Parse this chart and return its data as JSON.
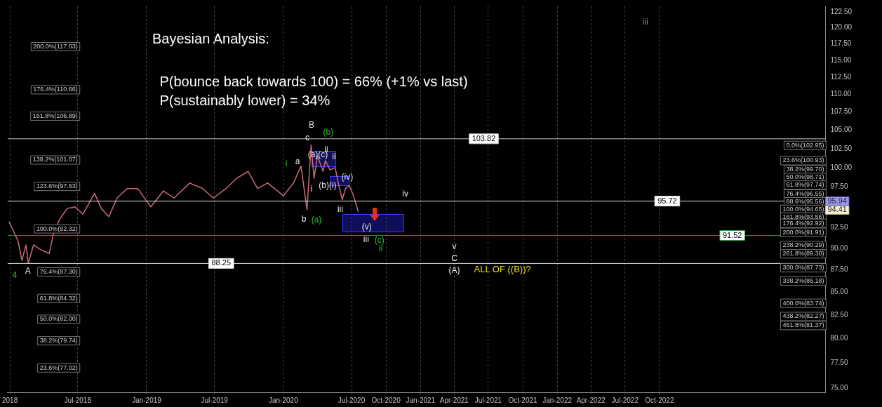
{
  "chart_data": {
    "type": "line",
    "title": "Bayesian Analysis:",
    "x": [
      "2017-12-29",
      "2018-01-09",
      "2018-01-23",
      "2018-02-02",
      "2018-02-13",
      "2018-02-19",
      "2018-03-05",
      "2018-03-26",
      "2018-04-16",
      "2018-04-27",
      "2018-05-14",
      "2018-06-03",
      "2018-06-24",
      "2018-07-15",
      "2018-08-15",
      "2018-09-02",
      "2018-09-22",
      "2018-10-14",
      "2018-11-10",
      "2018-12-08",
      "2019-01-12",
      "2019-02-15",
      "2019-03-15",
      "2019-04-26",
      "2019-05-31",
      "2019-06-28",
      "2019-08-01",
      "2019-08-29",
      "2019-09-29",
      "2019-10-24",
      "2019-11-20",
      "2020-01-01",
      "2020-01-28",
      "2020-02-17",
      "2020-03-04",
      "2020-03-15",
      "2020-03-23",
      "2020-04-01",
      "2020-04-16",
      "2020-04-22",
      "2020-05-05",
      "2020-05-18",
      "2020-05-24",
      "2020-06-06",
      "2020-06-15",
      "2020-06-25",
      "2020-07-06",
      "2020-07-19"
    ],
    "series": [
      {
        "color": "#c96b78",
        "values": [
          93.2,
          92.2,
          90.8,
          88.6,
          90.4,
          88.25,
          90.4,
          89.8,
          89.4,
          91.7,
          93.5,
          94.8,
          95.0,
          94.1,
          96.7,
          94.8,
          93.8,
          96.1,
          97.3,
          97.3,
          95.0,
          97.0,
          96.1,
          98.0,
          97.3,
          96.1,
          97.3,
          98.6,
          99.5,
          97.3,
          98.0,
          96.4,
          98.0,
          100.2,
          94.65,
          103.0,
          98.6,
          101.5,
          99.5,
          100.9,
          99.7,
          100.0,
          98.6,
          95.9,
          97.3,
          97.7,
          96.4,
          94.4
        ]
      }
    ],
    "log": true,
    "ylim": [
      74.6,
      123.4
    ],
    "yticks": [
      {
        "value": 75,
        "label": "75.00"
      },
      {
        "value": 77.5,
        "label": "77.50"
      },
      {
        "value": 80,
        "label": "80.00"
      },
      {
        "value": 82.5,
        "label": "82.50"
      },
      {
        "value": 85,
        "label": "85.00"
      },
      {
        "value": 87.5,
        "label": "87.50"
      },
      {
        "value": 90,
        "label": "90.00"
      },
      {
        "value": 92.5,
        "label": "92.50"
      },
      {
        "value": 97.5,
        "label": "97.50"
      },
      {
        "value": 100,
        "label": "100.00"
      },
      {
        "value": 102.5,
        "label": "102.50"
      },
      {
        "value": 105,
        "label": "105.00"
      },
      {
        "value": 107.5,
        "label": "107.50"
      },
      {
        "value": 110,
        "label": "110.00"
      },
      {
        "value": 112.5,
        "label": "112.50"
      },
      {
        "value": 115,
        "label": "115.00"
      },
      {
        "value": 117.5,
        "label": "117.50"
      },
      {
        "value": 120,
        "label": "120.00"
      },
      {
        "value": 122.5,
        "label": "122.50"
      }
    ],
    "xlim": [
      "2017-12-26",
      "2023-12-18"
    ],
    "xticks": [
      {
        "value": "2018-01-01",
        "label": "2018"
      },
      {
        "value": "2018-07-01",
        "label": "Jul-2018"
      },
      {
        "value": "2019-01-01",
        "label": "Jan-2019"
      },
      {
        "value": "2019-07-01",
        "label": "Jul-2019"
      },
      {
        "value": "2020-01-01",
        "label": "Jan-2020"
      },
      {
        "value": "2020-07-01",
        "label": "Jul-2020"
      },
      {
        "value": "2020-10-01",
        "label": "Oct-2020"
      },
      {
        "value": "2021-01-01",
        "label": "Jan-2021"
      },
      {
        "value": "2021-04-01",
        "label": "Apr-2021"
      },
      {
        "value": "2021-07-01",
        "label": "Jul-2021"
      },
      {
        "value": "2021-10-01",
        "label": "Oct-2021"
      },
      {
        "value": "2022-01-01",
        "label": "Jan-2022"
      },
      {
        "value": "2022-04-01",
        "label": "Apr-2022"
      },
      {
        "value": "2022-07-01",
        "label": "Jul-2022"
      },
      {
        "value": "2022-10-01",
        "label": "Oct-2022"
      }
    ],
    "grid": "x",
    "legend": false,
    "marker": "none",
    "ref_lines": [
      {
        "axis": "y",
        "value": 103.82,
        "label": "103.82",
        "color": "#c8c8c8"
      },
      {
        "axis": "y",
        "value": 95.72,
        "label": "95.72",
        "color": "#e0e0e0"
      },
      {
        "axis": "y",
        "value": 91.52,
        "label": "91.52",
        "color": "#2ea043"
      },
      {
        "axis": "y",
        "value": 88.25,
        "label": "88.25",
        "color": "#e0e0e0"
      }
    ],
    "annotations": [
      "P(bounce back towards 100) = 66% (+1% vs last)",
      "P(sustainably lower) = 34%",
      "200.0%(117.03)",
      "176.4%(110.66)",
      "161.8%(106.89)",
      "138.2%(101.07)",
      "123.6%(97.63)",
      "100.0%(92.32)",
      "76.4%(87.30)",
      "61.8%(84.32)",
      "50.0%(82.00)",
      "38.2%(79.74)",
      "23.6%(77.02)",
      "0.0%(102.95)",
      "23.6%(100.93)",
      "38.2%(99.70)",
      "50.0%(98.71)",
      "61.8%(97.74)",
      "76.4%(96.55)",
      "88.6%(95.56)",
      "100.0%(94.65)",
      "161.8%(93.56)",
      "176.4%(92.92)",
      "200.0%(91.91)",
      "238.2%(90.29)",
      "261.8%(89.30)",
      "300.0%(87.73)",
      "338.2%(86.18)",
      "400.0%(83.74)",
      "438.2%(82.27)",
      "461.8%(81.37)",
      "95.94",
      "94.41",
      "4",
      "A",
      "B",
      "(b)",
      "c",
      "ii",
      "i",
      "a",
      "(a)(c)",
      "ii",
      "i",
      "(b)(i)",
      "(iv)",
      "iv",
      "iii",
      "b",
      "(a)",
      "(v)",
      "iii",
      "(c)",
      "ii",
      "v",
      "C",
      "(A)",
      "ALL OF ((B))?",
      "iii"
    ]
  }
}
